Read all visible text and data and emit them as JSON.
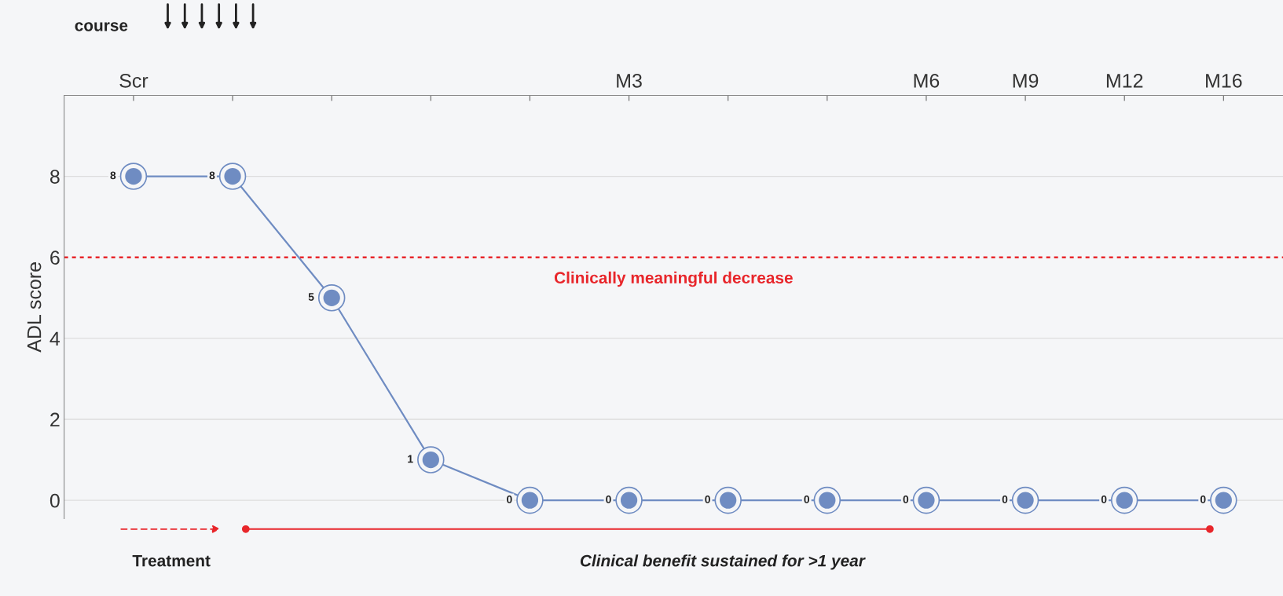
{
  "chart_data": {
    "type": "line",
    "title": "course",
    "ylabel": "ADL score",
    "categories": [
      "Scr",
      null,
      null,
      null,
      null,
      "M3",
      null,
      null,
      "M6",
      "M9",
      "M12",
      "M16"
    ],
    "series": [
      {
        "color": "#6f8cc2",
        "values": [
          8,
          8,
          5,
          1,
          0,
          0,
          0,
          0,
          0,
          0,
          0,
          0
        ]
      }
    ],
    "data_labels": true,
    "marker": "circle",
    "line_style": "solid",
    "ylim": [
      -0.45,
      10
    ],
    "yticks": [
      0,
      2,
      4,
      6,
      8
    ],
    "grid": "y",
    "ref_lines": [
      {
        "axis": "y",
        "value": 6,
        "label": "Clinically meaningful decrease",
        "color": "#e8262b",
        "line_style": "dotted"
      }
    ],
    "annotations": [
      "Treatment",
      "Clinical benefit sustained for >1 year"
    ]
  }
}
